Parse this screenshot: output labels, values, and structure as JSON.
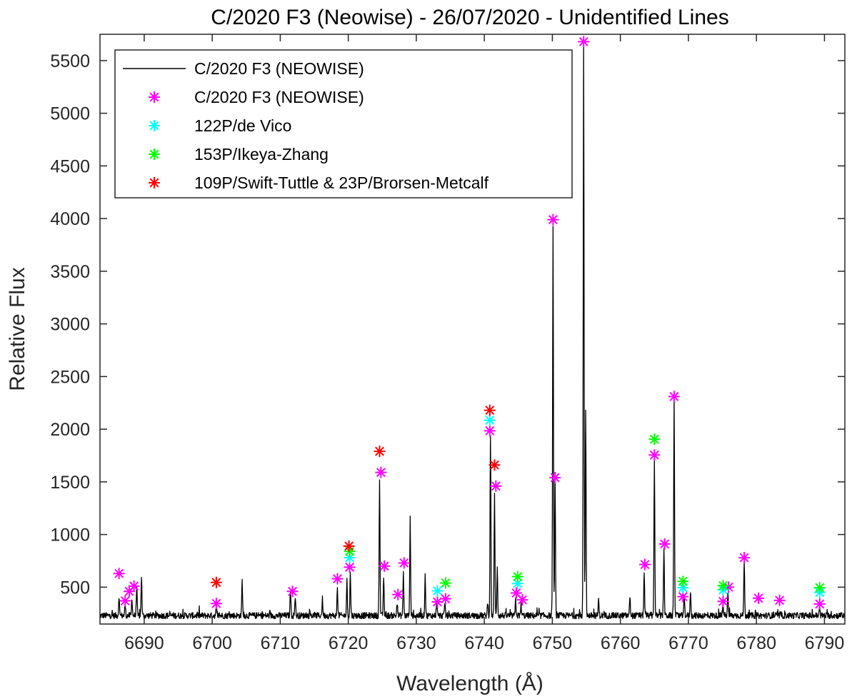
{
  "chart_data": {
    "type": "line",
    "title": "C/2020 F3 (Neowise) - 26/07/2020 - Unidentified Lines",
    "xlabel": "Wavelength (Å)",
    "ylabel": "Relative Flux",
    "xlim": [
      6683.5,
      6793
    ],
    "ylim": [
      150,
      5750
    ],
    "xticks": [
      6690,
      6700,
      6710,
      6720,
      6730,
      6740,
      6750,
      6760,
      6770,
      6780,
      6790
    ],
    "yticks": [
      500,
      1000,
      1500,
      2000,
      2500,
      3000,
      3500,
      4000,
      4500,
      5000,
      5500
    ],
    "grid": false,
    "legend_position": "top-left",
    "baseline": 230,
    "spectrum_peaks": [
      [
        6686.3,
        420
      ],
      [
        6687.2,
        330
      ],
      [
        6688.2,
        400
      ],
      [
        6688.9,
        520
      ],
      [
        6689.6,
        610
      ],
      [
        6700.6,
        310
      ],
      [
        6704.4,
        560
      ],
      [
        6711.5,
        480
      ],
      [
        6712.2,
        420
      ],
      [
        6716.2,
        390
      ],
      [
        6718.4,
        490
      ],
      [
        6719.8,
        560
      ],
      [
        6720.3,
        640
      ],
      [
        6724.6,
        1540
      ],
      [
        6725.2,
        600
      ],
      [
        6727.2,
        360
      ],
      [
        6728.1,
        640
      ],
      [
        6729.1,
        1150
      ],
      [
        6731.3,
        620
      ],
      [
        6733.0,
        380
      ],
      [
        6734.2,
        360
      ],
      [
        6740.5,
        360
      ],
      [
        6740.9,
        1960
      ],
      [
        6741.5,
        1390
      ],
      [
        6741.9,
        700
      ],
      [
        6744.6,
        380
      ],
      [
        6745.4,
        330
      ],
      [
        6750.1,
        3900
      ],
      [
        6750.4,
        1520
      ],
      [
        6754.6,
        5660
      ],
      [
        6754.9,
        2200
      ],
      [
        6756.8,
        380
      ],
      [
        6761.4,
        420
      ],
      [
        6763.5,
        650
      ],
      [
        6765.0,
        1730
      ],
      [
        6766.4,
        880
      ],
      [
        6767.9,
        2290
      ],
      [
        6769.4,
        420
      ],
      [
        6770.3,
        470
      ],
      [
        6775.1,
        340
      ],
      [
        6775.8,
        450
      ],
      [
        6778.2,
        760
      ],
      [
        6789.3,
        300
      ]
    ],
    "series": [
      {
        "name": "C/2020 F3 (NEOWISE)",
        "style": "line",
        "color": "#000000"
      },
      {
        "name": "C/2020 F3 (NEOWISE)",
        "style": "marker",
        "color": "#ff00ff",
        "points": [
          [
            6686.3,
            630
          ],
          [
            6687.2,
            370
          ],
          [
            6687.8,
            460
          ],
          [
            6688.5,
            510
          ],
          [
            6700.6,
            345
          ],
          [
            6711.8,
            460
          ],
          [
            6718.4,
            580
          ],
          [
            6720.2,
            690
          ],
          [
            6724.8,
            1590
          ],
          [
            6725.3,
            700
          ],
          [
            6727.3,
            430
          ],
          [
            6728.2,
            730
          ],
          [
            6733.1,
            360
          ],
          [
            6734.3,
            390
          ],
          [
            6740.8,
            1985
          ],
          [
            6741.7,
            1460
          ],
          [
            6744.7,
            445
          ],
          [
            6745.6,
            380
          ],
          [
            6750.1,
            3990
          ],
          [
            6750.4,
            1540
          ],
          [
            6754.6,
            5680
          ],
          [
            6763.6,
            715
          ],
          [
            6765.0,
            1755
          ],
          [
            6766.5,
            910
          ],
          [
            6767.9,
            2310
          ],
          [
            6769.2,
            410
          ],
          [
            6775.1,
            365
          ],
          [
            6775.9,
            500
          ],
          [
            6778.2,
            780
          ],
          [
            6780.3,
            395
          ],
          [
            6783.4,
            375
          ],
          [
            6789.3,
            340
          ]
        ]
      },
      {
        "name": "122P/de Vico",
        "style": "marker",
        "color": "#00ffff",
        "points": [
          [
            6720.2,
            780
          ],
          [
            6733.1,
            465
          ],
          [
            6740.8,
            2085
          ],
          [
            6744.9,
            535
          ],
          [
            6769.2,
            495
          ],
          [
            6775.1,
            475
          ],
          [
            6789.3,
            450
          ]
        ]
      },
      {
        "name": "153P/Ikeya-Zhang",
        "style": "marker",
        "color": "#00ff00",
        "points": [
          [
            6720.2,
            840
          ],
          [
            6734.3,
            540
          ],
          [
            6744.9,
            600
          ],
          [
            6765.0,
            1905
          ],
          [
            6769.2,
            555
          ],
          [
            6775.1,
            515
          ],
          [
            6789.3,
            495
          ]
        ]
      },
      {
        "name": "109P/Swift-Tuttle & 23P/Brorsen-Metcalf",
        "style": "marker",
        "color": "#ff0000",
        "points": [
          [
            6700.6,
            545
          ],
          [
            6720.1,
            890
          ],
          [
            6724.6,
            1790
          ],
          [
            6740.8,
            2180
          ],
          [
            6741.5,
            1660
          ]
        ]
      }
    ]
  }
}
